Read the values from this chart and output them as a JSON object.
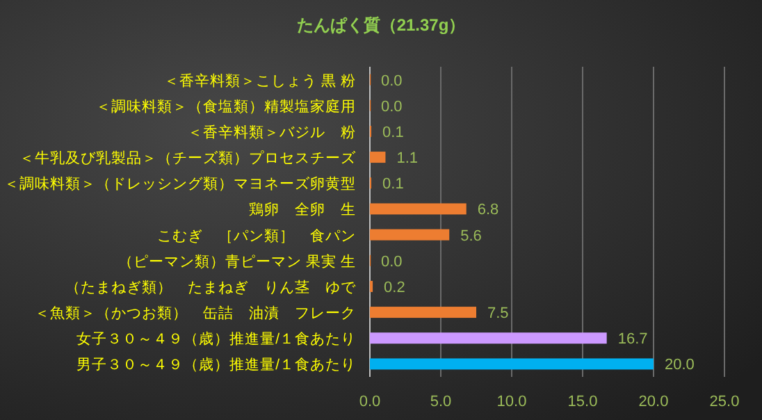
{
  "chart_data": {
    "type": "bar",
    "orientation": "horizontal",
    "title": "たんぱく質（21.37g）",
    "categories": [
      "＜香辛料類＞こしょう 黒 粉",
      "＜調味料類＞（食塩類）精製塩家庭用",
      "＜香辛料類＞バジル　粉",
      "＜牛乳及び乳製品＞（チーズ類）プロセスチーズ",
      "＜調味料類＞（ドレッシング類）マヨネーズ卵黄型",
      "鶏卵　全卵　生",
      "こむぎ　［パン類］　食パン",
      "（ピーマン類）青ピーマン 果実 生",
      "（たまねぎ類）　たまねぎ　りん茎　ゆで",
      "＜魚類＞（かつお類）　缶詰　油漬　フレーク",
      "女子３０～４９（歳）推進量/１食あたり",
      "男子３０～４９（歳）推進量/１食あたり"
    ],
    "values": [
      0.0,
      0.0,
      0.1,
      1.1,
      0.1,
      6.8,
      5.6,
      0.0,
      0.2,
      7.5,
      16.7,
      20.0
    ],
    "value_labels": [
      "0.0",
      "0.0",
      "0.1",
      "1.1",
      "0.1",
      "6.8",
      "5.6",
      "0.0",
      "0.2",
      "7.5",
      "16.7",
      "20.0"
    ],
    "colors": [
      "#ed7d31",
      "#ed7d31",
      "#ed7d31",
      "#ed7d31",
      "#ed7d31",
      "#ed7d31",
      "#ed7d31",
      "#ed7d31",
      "#ed7d31",
      "#ed7d31",
      "#cc99ff",
      "#00b0f0"
    ],
    "xlim": [
      0,
      25
    ],
    "xticks": [
      {
        "value": 0,
        "label": "0.0"
      },
      {
        "value": 5,
        "label": "5.0"
      },
      {
        "value": 10,
        "label": "10.0"
      },
      {
        "value": 15,
        "label": "15.0"
      },
      {
        "value": 20,
        "label": "20.0"
      },
      {
        "value": 25,
        "label": "25.0"
      }
    ],
    "grid": "x"
  }
}
